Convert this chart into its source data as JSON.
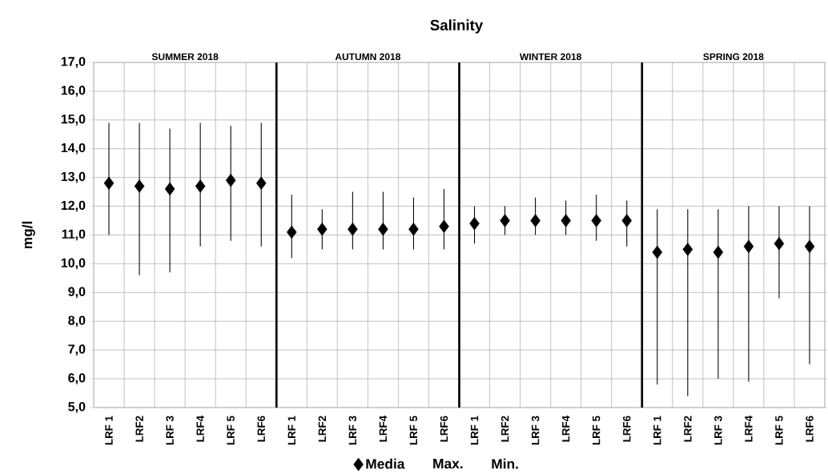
{
  "chart_data": {
    "type": "scatter",
    "title": "Salinity",
    "ylabel": "mg/l",
    "categories": [
      "LRF 1",
      "LRF2",
      "LRF 3",
      "LRF4",
      "LRF 5",
      "LRF6",
      "LRF 1",
      "LRF2",
      "LRF 3",
      "LRF4",
      "LRF 5",
      "LRF6",
      "LRF 1",
      "LRF2",
      "LRF 3",
      "LRF4",
      "LRF 5",
      "LRF6",
      "LRF 1",
      "LRF2",
      "LRF 3",
      "LRF4",
      "LRF 5",
      "LRF6"
    ],
    "series": [
      {
        "name": "Media",
        "color": "#000000",
        "values": [
          12.8,
          12.7,
          12.6,
          12.7,
          12.9,
          12.8,
          11.1,
          11.2,
          11.2,
          11.2,
          11.2,
          11.3,
          11.4,
          11.5,
          11.5,
          11.5,
          11.5,
          11.5,
          10.4,
          10.5,
          10.4,
          10.6,
          10.7,
          10.6
        ],
        "errors": [
          [
            11.0,
            14.9
          ],
          [
            9.6,
            14.9
          ],
          [
            9.7,
            14.7
          ],
          [
            10.6,
            14.9
          ],
          [
            10.8,
            14.8
          ],
          [
            10.6,
            14.9
          ],
          [
            10.2,
            12.4
          ],
          [
            10.5,
            11.9
          ],
          [
            10.5,
            12.5
          ],
          [
            10.5,
            12.5
          ],
          [
            10.5,
            12.3
          ],
          [
            10.5,
            12.6
          ],
          [
            10.7,
            12.0
          ],
          [
            11.0,
            12.0
          ],
          [
            11.0,
            12.3
          ],
          [
            11.0,
            12.2
          ],
          [
            10.8,
            12.4
          ],
          [
            10.6,
            12.2
          ],
          [
            5.8,
            11.9
          ],
          [
            5.4,
            11.9
          ],
          [
            6.0,
            11.9
          ],
          [
            5.9,
            12.0
          ],
          [
            8.8,
            12.0
          ],
          [
            6.5,
            12.0
          ]
        ]
      }
    ],
    "marker": "diamond",
    "ylim": [
      5,
      17
    ],
    "yticks": [
      {
        "value": 5,
        "label": "5,0"
      },
      {
        "value": 6,
        "label": "6,0"
      },
      {
        "value": 7,
        "label": "7,0"
      },
      {
        "value": 8,
        "label": "8,0"
      },
      {
        "value": 9,
        "label": "9,0"
      },
      {
        "value": 10,
        "label": "10,0"
      },
      {
        "value": 11,
        "label": "11,0"
      },
      {
        "value": 12,
        "label": "12,0"
      },
      {
        "value": 13,
        "label": "13,0"
      },
      {
        "value": 14,
        "label": "14,0"
      },
      {
        "value": 15,
        "label": "15,0"
      },
      {
        "value": 16,
        "label": "16,0"
      },
      {
        "value": 17,
        "label": "17,0"
      }
    ],
    "grid": true,
    "legend": "bottom",
    "annotations": [
      "SUMMER 2018",
      "AUTUMN 2018",
      "WINTER 2018",
      "SPRING 2018",
      "Max.",
      "Min."
    ]
  }
}
